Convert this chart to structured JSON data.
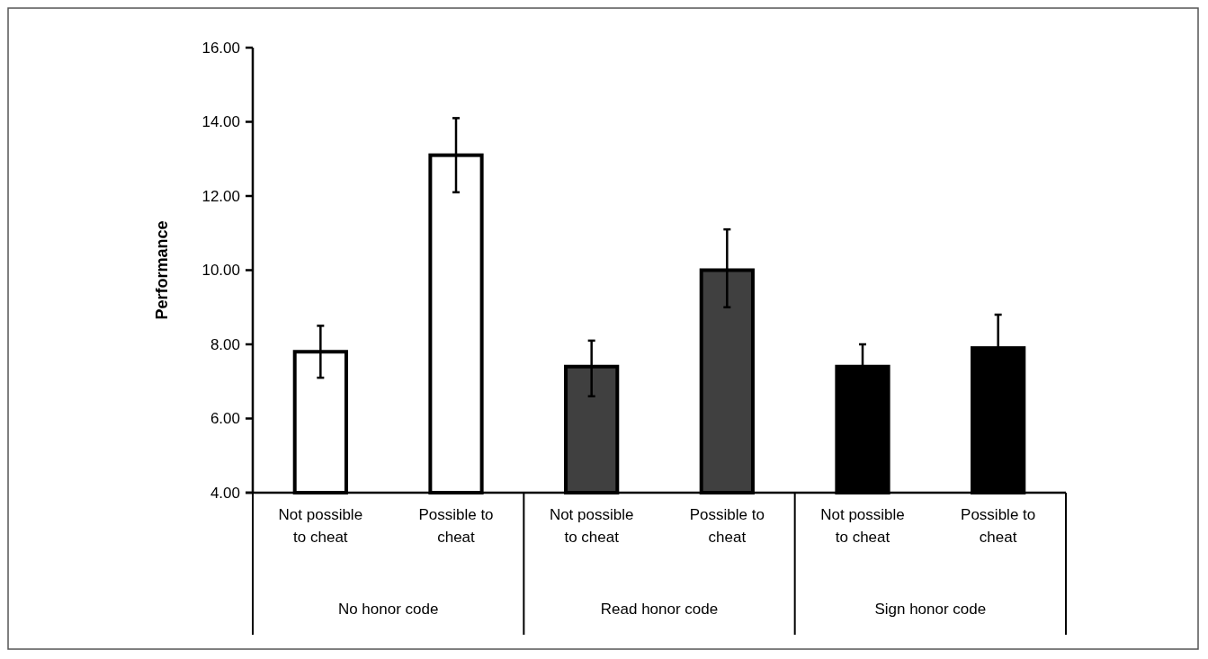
{
  "chart_data": {
    "type": "bar",
    "ylabel": "Performance",
    "categories": [
      "Not possible to cheat",
      "Possible to cheat",
      "Not possible to cheat",
      "Possible to cheat",
      "Not possible to cheat",
      "Possible to cheat"
    ],
    "values": [
      7.8,
      13.1,
      7.4,
      10.0,
      7.4,
      7.9
    ],
    "colors": [
      "#ffffff",
      "#ffffff",
      "#404040",
      "#404040",
      "#000000",
      "#000000"
    ],
    "errors": [
      [
        7.1,
        8.5
      ],
      [
        12.1,
        14.1
      ],
      [
        6.6,
        8.1
      ],
      [
        9.0,
        11.1
      ],
      0.6,
      0.9
    ],
    "ylim": [
      4,
      16
    ],
    "yticks": [
      {
        "value": 4,
        "label": "4.00"
      },
      {
        "value": 6,
        "label": "6.00"
      },
      {
        "value": 8,
        "label": "8.00"
      },
      {
        "value": 10,
        "label": "10.00"
      },
      {
        "value": 12,
        "label": "12.00"
      },
      {
        "value": 14,
        "label": "14.00"
      },
      {
        "value": 16,
        "label": "16.00"
      }
    ],
    "annotations": [
      "No honor code",
      "Read honor code",
      "Sign honor code"
    ],
    "grid": false
  }
}
